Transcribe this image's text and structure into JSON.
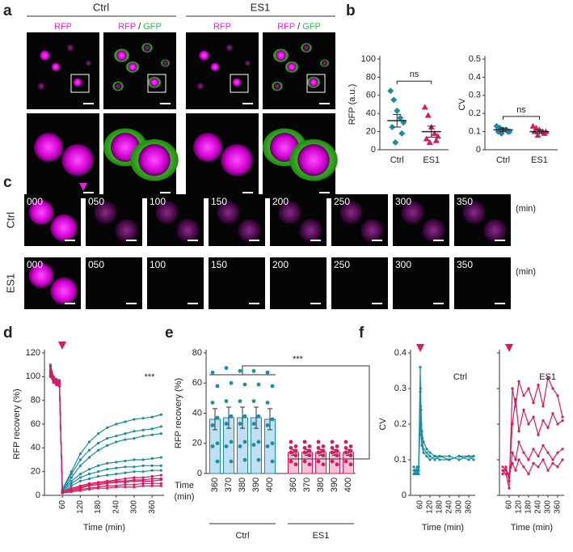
{
  "panel_labels": [
    "a",
    "b",
    "c",
    "d",
    "e",
    "f"
  ],
  "panel_a": {
    "groups": [
      "Ctrl",
      "ES1"
    ],
    "rfp": "RFP",
    "merge_rfp": "RFP",
    "separator": "/",
    "merge_gfp": "GFP"
  },
  "panel_c": {
    "frames": [
      "000",
      "050",
      "100",
      "150",
      "200",
      "250",
      "300",
      "350"
    ],
    "unit": "(min)",
    "rows": [
      "Ctrl",
      "ES1"
    ]
  },
  "chart_data": [
    {
      "type": "strip",
      "y_label": "RFP (a.u.)",
      "categories": [
        "Ctrl",
        "ES1"
      ],
      "colors": [
        "#1c8ca0",
        "#d81b60"
      ],
      "markers": [
        "diamond",
        "triangle"
      ],
      "points": [
        [
          65,
          55,
          43,
          35,
          30,
          25,
          18,
          8
        ],
        [
          47,
          38,
          25,
          18,
          15,
          12,
          10,
          8
        ]
      ],
      "means": [
        32,
        20
      ],
      "sems": [
        7,
        6
      ],
      "annotation": "ns",
      "ylim": [
        0,
        100
      ],
      "yticks": [
        0,
        20,
        40,
        60,
        80,
        100
      ]
    },
    {
      "type": "strip",
      "y_label": "CV",
      "categories": [
        "Ctrl",
        "ES1"
      ],
      "colors": [
        "#1c8ca0",
        "#d81b60"
      ],
      "markers": [
        "diamond",
        "triangle"
      ],
      "points": [
        [
          0.13,
          0.12,
          0.11,
          0.11,
          0.1,
          0.1,
          0.1,
          0.09
        ],
        [
          0.13,
          0.12,
          0.11,
          0.1,
          0.1,
          0.1,
          0.09,
          0.08
        ]
      ],
      "means": [
        0.11,
        0.1
      ],
      "sems": [
        0.01,
        0.01
      ],
      "annotation": "ns",
      "ylim": [
        0,
        0.5
      ],
      "yticks": [
        0,
        0.1,
        0.2,
        0.3,
        0.4,
        0.5
      ]
    },
    {
      "type": "line",
      "y_label": "RFP recovery (%)",
      "x_label": "Time (min)",
      "annotation": "***",
      "x": [
        20,
        30,
        40,
        50,
        60,
        90,
        120,
        150,
        180,
        210,
        240,
        270,
        300,
        330,
        360,
        390
      ],
      "series": [
        {
          "color": "#1c8ca0",
          "values": [
            110,
            100,
            98,
            97,
            5,
            20,
            35,
            45,
            52,
            57,
            60,
            62,
            64,
            65,
            66,
            68
          ]
        },
        {
          "color": "#1c8ca0",
          "values": [
            105,
            100,
            96,
            95,
            4,
            18,
            30,
            38,
            44,
            48,
            50,
            52,
            54,
            55,
            56,
            58
          ]
        },
        {
          "color": "#1c8ca0",
          "values": [
            108,
            99,
            97,
            96,
            3,
            15,
            25,
            32,
            38,
            42,
            45,
            47,
            48,
            50,
            51,
            52
          ]
        },
        {
          "color": "#1c8ca0",
          "values": [
            104,
            98,
            96,
            94,
            4,
            12,
            18,
            22,
            25,
            27,
            28,
            29,
            30,
            30,
            31,
            32
          ]
        },
        {
          "color": "#1c8ca0",
          "values": [
            102,
            97,
            95,
            93,
            3,
            10,
            15,
            18,
            20,
            22,
            23,
            24,
            24,
            25,
            25,
            25
          ]
        },
        {
          "color": "#1c8ca0",
          "values": [
            100,
            96,
            94,
            92,
            2,
            8,
            12,
            14,
            16,
            17,
            18,
            19,
            20,
            20,
            21,
            21
          ]
        },
        {
          "color": "#d81b60",
          "values": [
            109,
            100,
            97,
            96,
            3,
            6,
            8,
            10,
            11,
            12,
            13,
            14,
            15,
            15,
            16,
            17
          ]
        },
        {
          "color": "#d81b60",
          "values": [
            106,
            99,
            96,
            95,
            3,
            5,
            7,
            9,
            10,
            11,
            12,
            12,
            13,
            13,
            14,
            14
          ]
        },
        {
          "color": "#d81b60",
          "values": [
            103,
            97,
            95,
            94,
            2,
            4,
            6,
            8,
            9,
            10,
            11,
            11,
            12,
            12,
            12,
            13
          ]
        },
        {
          "color": "#d81b60",
          "values": [
            101,
            96,
            94,
            93,
            2,
            4,
            5,
            6,
            7,
            8,
            8,
            9,
            9,
            10,
            10,
            10
          ]
        },
        {
          "color": "#d81b60",
          "values": [
            100,
            95,
            93,
            92,
            2,
            3,
            4,
            5,
            6,
            6,
            7,
            7,
            7,
            8,
            8,
            8
          ]
        }
      ],
      "xlim": [
        0,
        400
      ],
      "xticks": [
        60,
        120,
        180,
        240,
        300,
        360
      ],
      "ylim": [
        0,
        120
      ],
      "yticks": [
        0,
        20,
        40,
        60,
        80,
        100,
        120
      ]
    },
    {
      "type": "bar_points",
      "y_label": "RFP recovery (%)",
      "x_label": [
        "Time",
        "(min)"
      ],
      "annotation": "***",
      "groups": [
        {
          "name": "Ctrl",
          "color": "#1c8ca0",
          "fill": "#bfdff2",
          "categories": [
            "360",
            "370",
            "380",
            "390",
            "400"
          ],
          "values": [
            36,
            37,
            37,
            37,
            36
          ],
          "errors": [
            7,
            7,
            7,
            7,
            7
          ],
          "points": [
            [
              67,
              58,
              47,
              37,
              32,
              20,
              18,
              8
            ],
            [
              70,
              60,
              48,
              38,
              33,
              21,
              18,
              8
            ],
            [
              68,
              59,
              48,
              38,
              33,
              21,
              18,
              9
            ],
            [
              68,
              59,
              48,
              38,
              33,
              21,
              19,
              9
            ],
            [
              67,
              58,
              47,
              36,
              32,
              20,
              18,
              8
            ]
          ]
        },
        {
          "name": "ES1",
          "color": "#d81b60",
          "fill": "#f6c2d6",
          "categories": [
            "360",
            "370",
            "380",
            "390",
            "400"
          ],
          "values": [
            14,
            14,
            14,
            14,
            14
          ],
          "errors": [
            2,
            2,
            2,
            2,
            2
          ],
          "points": [
            [
              21,
              18,
              17,
              15,
              14,
              12,
              8,
              6
            ],
            [
              21,
              18,
              17,
              15,
              14,
              12,
              8,
              6
            ],
            [
              21,
              18,
              17,
              15,
              14,
              12,
              8,
              6
            ],
            [
              21,
              18,
              17,
              15,
              14,
              12,
              8,
              6
            ],
            [
              21,
              18,
              17,
              15,
              14,
              12,
              8,
              6
            ]
          ]
        }
      ],
      "ylim": [
        0,
        80
      ],
      "yticks": [
        0,
        20,
        40,
        60,
        80
      ]
    },
    {
      "type": "line",
      "title": "Ctrl",
      "y_label": "CV",
      "x_label": "Time (min)",
      "x": [
        20,
        30,
        40,
        50,
        60,
        62,
        65,
        70,
        80,
        100,
        120,
        150,
        180,
        240,
        300,
        360,
        390
      ],
      "series": [
        {
          "color": "#1c8ca0",
          "values": [
            0.07,
            0.06,
            0.08,
            0.07,
            0.36,
            0.3,
            0.24,
            0.18,
            0.15,
            0.13,
            0.12,
            0.11,
            0.11,
            0.1,
            0.11,
            0.11,
            0.1
          ]
        },
        {
          "color": "#1c8ca0",
          "values": [
            0.06,
            0.07,
            0.06,
            0.08,
            0.29,
            0.25,
            0.2,
            0.16,
            0.13,
            0.12,
            0.11,
            0.1,
            0.11,
            0.11,
            0.1,
            0.11,
            0.11
          ]
        },
        {
          "color": "#1c8ca0",
          "values": [
            0.08,
            0.07,
            0.07,
            0.06,
            0.22,
            0.2,
            0.17,
            0.14,
            0.12,
            0.11,
            0.1,
            0.11,
            0.1,
            0.1,
            0.11,
            0.1,
            0.11
          ]
        }
      ],
      "xlim": [
        0,
        400
      ],
      "xticks": [
        60,
        120,
        180,
        240,
        300,
        360
      ],
      "ylim": [
        0,
        0.4
      ],
      "yticks": [
        0,
        0.1,
        0.2,
        0.3,
        0.4
      ]
    },
    {
      "type": "line",
      "title": "ES1",
      "x_label": "Time (min)",
      "ytick_labels": false,
      "x": [
        20,
        40,
        60,
        80,
        100,
        120,
        150,
        180,
        210,
        240,
        270,
        300,
        330,
        360,
        390
      ],
      "series": [
        {
          "color": "#d81b60",
          "values": [
            0.07,
            0.06,
            0.02,
            0.3,
            0.25,
            0.32,
            0.28,
            0.3,
            0.26,
            0.31,
            0.25,
            0.33,
            0.3,
            0.28,
            0.22
          ]
        },
        {
          "color": "#d81b60",
          "values": [
            0.08,
            0.07,
            0.05,
            0.2,
            0.27,
            0.18,
            0.24,
            0.2,
            0.22,
            0.17,
            0.21,
            0.19,
            0.23,
            0.2,
            0.21
          ]
        },
        {
          "color": "#d81b60",
          "values": [
            0.06,
            0.08,
            0.04,
            0.12,
            0.1,
            0.15,
            0.12,
            0.1,
            0.13,
            0.11,
            0.14,
            0.12,
            0.1,
            0.12,
            0.13
          ]
        },
        {
          "color": "#d81b60",
          "values": [
            0.07,
            0.07,
            0.06,
            0.09,
            0.07,
            0.1,
            0.08,
            0.06,
            0.09,
            0.08,
            0.1,
            0.07,
            0.09,
            0.08,
            0.1
          ]
        }
      ],
      "xlim": [
        0,
        400
      ],
      "xticks": [
        60,
        120,
        180,
        240,
        300,
        360
      ],
      "ylim": [
        0,
        0.4
      ],
      "yticks": [
        0,
        0.1,
        0.2,
        0.3,
        0.4
      ]
    }
  ]
}
